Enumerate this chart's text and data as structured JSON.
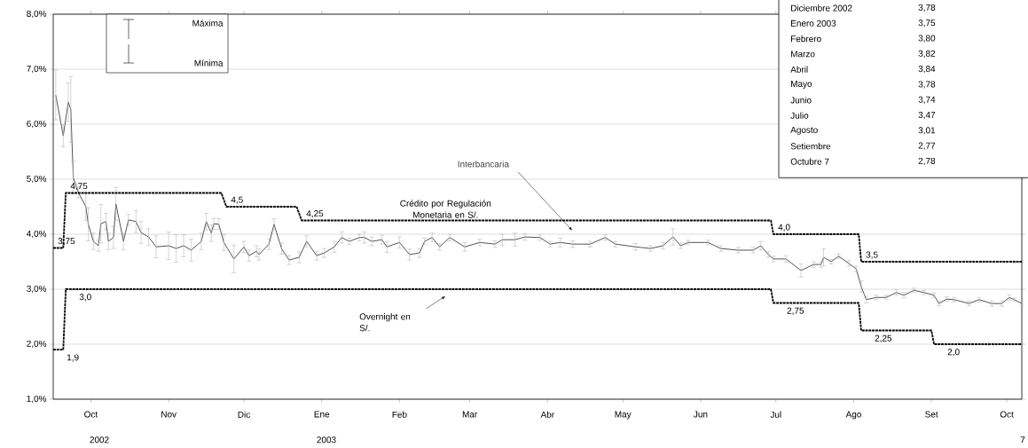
{
  "chart_data": {
    "type": "line",
    "xlim": [
      "2002-09-16",
      "2003-10-07"
    ],
    "ylim": [
      1,
      8
    ],
    "xticks": [
      {
        "value": "2002-10-01",
        "label": "Oct"
      },
      {
        "value": "2002-11-01",
        "label": "Nov"
      },
      {
        "value": "2002-12-01",
        "label": "Dic"
      },
      {
        "value": "2003-01-01",
        "label": "Ene"
      },
      {
        "value": "2003-02-01",
        "label": "Feb"
      },
      {
        "value": "2003-03-01",
        "label": "Mar"
      },
      {
        "value": "2003-04-01",
        "label": "Abr"
      },
      {
        "value": "2003-05-01",
        "label": "May"
      },
      {
        "value": "2003-06-01",
        "label": "Jun"
      },
      {
        "value": "2003-07-01",
        "label": "Jul"
      },
      {
        "value": "2003-08-01",
        "label": "Ago"
      },
      {
        "value": "2003-09-01",
        "label": "Set"
      },
      {
        "value": "2003-10-01",
        "label": "Oct"
      }
    ],
    "yticks": [
      {
        "value": 1,
        "label": "1,0%"
      },
      {
        "value": 2,
        "label": "2,0%"
      },
      {
        "value": 3,
        "label": "3,0%"
      },
      {
        "value": 4,
        "label": "4,0%"
      },
      {
        "value": 5,
        "label": "5,0%"
      },
      {
        "value": 6,
        "label": "6,0%"
      },
      {
        "value": 7,
        "label": "7,0%"
      },
      {
        "value": 8,
        "label": "8,0%"
      }
    ],
    "grid": "y",
    "annotations": [
      "Máxima",
      "Mínima",
      "Diciembre 2002",
      "3,78",
      "Enero 2003",
      "3,75",
      "Febrero",
      "3,80",
      "Marzo",
      "3,82",
      "Abril",
      "3,84",
      "Mayo",
      "3,78",
      "Junio",
      "3,74",
      "Julio",
      "3,47",
      "Agosto",
      "3,01",
      "Setiembre",
      "2,77",
      "Octubre 7",
      "2,78",
      "2002",
      "2003",
      "7"
    ],
    "series": [
      {
        "name": "Interbancaria",
        "color": "#404040",
        "x": [
          "2002-09-17",
          "2002-09-20",
          "2002-09-22",
          "2002-09-23",
          "2002-09-24",
          "2002-09-26",
          "2002-09-29",
          "2002-09-30",
          "2002-10-02",
          "2002-10-04",
          "2002-10-05",
          "2002-10-07",
          "2002-10-08",
          "2002-10-10",
          "2002-10-11",
          "2002-10-14",
          "2002-10-16",
          "2002-10-19",
          "2002-10-21",
          "2002-10-24",
          "2002-10-27",
          "2002-11-01",
          "2002-11-04",
          "2002-11-07",
          "2002-11-10",
          "2002-11-14",
          "2002-11-16",
          "2002-11-18",
          "2002-11-19",
          "2002-11-21",
          "2002-11-23",
          "2002-11-27",
          "2002-12-01",
          "2002-12-03",
          "2002-12-06",
          "2002-12-07",
          "2002-12-11",
          "2002-12-13",
          "2002-12-16",
          "2002-12-19",
          "2002-12-23",
          "2002-12-26",
          "2002-12-30",
          "2003-01-02",
          "2003-01-06",
          "2003-01-09",
          "2003-01-12",
          "2003-01-16",
          "2003-01-18",
          "2003-01-21",
          "2003-01-25",
          "2003-01-27",
          "2003-02-01",
          "2003-02-05",
          "2003-02-09",
          "2003-02-11",
          "2003-02-14",
          "2003-02-17",
          "2003-02-21",
          "2003-02-27",
          "2003-03-05",
          "2003-03-11",
          "2003-03-14",
          "2003-03-19",
          "2003-03-23",
          "2003-03-29",
          "2003-04-02",
          "2003-04-06",
          "2003-04-11",
          "2003-04-18",
          "2003-04-24",
          "2003-04-28",
          "2003-05-06",
          "2003-05-12",
          "2003-05-17",
          "2003-05-21",
          "2003-05-24",
          "2003-05-27",
          "2003-06-04",
          "2003-06-09",
          "2003-06-16",
          "2003-06-22",
          "2003-06-25",
          "2003-06-28",
          "2003-06-30",
          "2003-07-05",
          "2003-07-11",
          "2003-07-16",
          "2003-07-19",
          "2003-07-20",
          "2003-07-23",
          "2003-07-26",
          "2003-07-30",
          "2003-08-02",
          "2003-08-04",
          "2003-08-06",
          "2003-08-10",
          "2003-08-14",
          "2003-08-18",
          "2003-08-21",
          "2003-08-25",
          "2003-08-29",
          "2003-09-02",
          "2003-09-04",
          "2003-09-07",
          "2003-09-10",
          "2003-09-16",
          "2003-09-20",
          "2003-09-25",
          "2003-09-29",
          "2003-10-02",
          "2003-10-04",
          "2003-10-07"
        ],
        "values": [
          6.53,
          5.79,
          6.4,
          6.27,
          5.03,
          4.76,
          4.5,
          4.18,
          3.87,
          3.79,
          4.19,
          4.23,
          3.87,
          3.94,
          4.55,
          3.87,
          4.26,
          4.23,
          4.03,
          3.95,
          3.77,
          3.79,
          3.74,
          3.79,
          3.71,
          3.87,
          4.23,
          4.02,
          4.19,
          4.18,
          3.85,
          3.55,
          3.77,
          3.61,
          3.69,
          3.63,
          3.82,
          4.18,
          3.74,
          3.53,
          3.58,
          3.87,
          3.61,
          3.66,
          3.77,
          3.94,
          3.87,
          3.94,
          3.94,
          3.87,
          3.9,
          3.77,
          3.85,
          3.63,
          3.66,
          3.87,
          3.94,
          3.77,
          3.94,
          3.77,
          3.85,
          3.82,
          3.9,
          3.9,
          3.95,
          3.94,
          3.82,
          3.85,
          3.82,
          3.82,
          3.94,
          3.82,
          3.77,
          3.74,
          3.79,
          3.95,
          3.79,
          3.85,
          3.85,
          3.74,
          3.71,
          3.71,
          3.79,
          3.63,
          3.55,
          3.55,
          3.34,
          3.45,
          3.45,
          3.58,
          3.5,
          3.6,
          3.47,
          3.37,
          3.05,
          2.81,
          2.85,
          2.85,
          2.94,
          2.89,
          2.98,
          2.94,
          2.89,
          2.74,
          2.82,
          2.81,
          2.74,
          2.81,
          2.74,
          2.74,
          2.85,
          2.81,
          2.74
        ],
        "errors": [
          0.45,
          0.2,
          0.35,
          0.6,
          0.3,
          0.1,
          0.25,
          0.3,
          0.15,
          0.1,
          0.35,
          0.15,
          0.15,
          0.2,
          0.3,
          0.15,
          0.1,
          0.2,
          0.2,
          0.15,
          0.2,
          0.25,
          0.25,
          0.2,
          0.2,
          0.15,
          0.15,
          0.15,
          0.1,
          0.1,
          0.15,
          0.25,
          0.1,
          0.1,
          0.1,
          0.1,
          0.1,
          0.1,
          0.1,
          0.08,
          0.1,
          0.1,
          0.08,
          0.08,
          0.1,
          0.1,
          0.06,
          0.06,
          0.1,
          0.08,
          0.08,
          0.1,
          0.1,
          0.1,
          0.08,
          0.06,
          0.08,
          0.06,
          0.06,
          0.08,
          0.06,
          0.06,
          0.1,
          0.12,
          0.06,
          0.05,
          0.05,
          0.08,
          0.06,
          0.05,
          0.05,
          0.05,
          0.06,
          0.05,
          0.06,
          0.15,
          0.05,
          0.04,
          0.04,
          0.05,
          0.05,
          0.05,
          0.08,
          0.05,
          0.05,
          0.06,
          0.12,
          0.05,
          0.05,
          0.15,
          0.04,
          0.04,
          0.05,
          0.05,
          0.1,
          0.06,
          0.04,
          0.04,
          0.05,
          0.05,
          0.04,
          0.04,
          0.04,
          0.04,
          0.04,
          0.04,
          0.04,
          0.04,
          0.05,
          0.05,
          0.05,
          0.03,
          0.03
        ]
      },
      {
        "name": "Crédito por Regulación Monetaria en S/.",
        "color": "#000000",
        "line_style": "dashed",
        "x": [
          "2002-09-16",
          "2002-09-20",
          "2002-09-21",
          "2002-11-22",
          "2002-11-24",
          "2002-12-22",
          "2002-12-24",
          "2003-06-29",
          "2003-06-30",
          "2003-08-03",
          "2003-08-04",
          "2003-10-07"
        ],
        "values": [
          3.75,
          3.75,
          4.75,
          4.75,
          4.5,
          4.5,
          4.25,
          4.25,
          4.0,
          4.0,
          3.5,
          3.5
        ],
        "value_labels": [
          "3,75",
          null,
          "4,75",
          null,
          "4,5",
          null,
          "4,25",
          null,
          "4,0",
          null,
          "3,5",
          null
        ]
      },
      {
        "name": "Overnight en S/.",
        "color": "#000000",
        "line_style": "dashed",
        "x": [
          "2002-09-16",
          "2002-09-20",
          "2002-09-21",
          "2003-06-29",
          "2003-06-30",
          "2003-08-03",
          "2003-08-04",
          "2003-09-01",
          "2003-09-02",
          "2003-10-07"
        ],
        "values": [
          1.9,
          1.9,
          3.0,
          3.0,
          2.75,
          2.75,
          2.25,
          2.25,
          2.0,
          2.0
        ],
        "value_labels": [
          "1,9",
          null,
          "3,0",
          null,
          "2,75",
          null,
          "2,25",
          null,
          "2,0",
          null
        ]
      }
    ]
  }
}
